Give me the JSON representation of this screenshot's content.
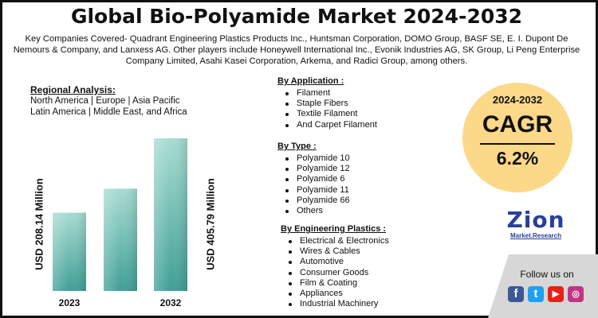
{
  "title": "Global Bio-Polyamide Market 2024-2032",
  "subtitle": "Key Companies Covered- Quadrant Engineering Plastics Products Inc., Huntsman Corporation, DOMO Group, BASF SE, E. I. Dupont De Nemours & Company, and Lanxess AG. Other players include Honeywell International Inc., Evonik Industries AG, SK Group, Li Peng Enterprise Company Limited, Asahi Kasei Corporation, Arkema, and Radici Group, among others.",
  "regional": {
    "heading": "Regional Analysis:",
    "line1": "North America | Europe | Asia Pacific",
    "line2": "Latin America | Middle East, and Africa"
  },
  "chart_data": {
    "type": "bar",
    "categories": [
      "2023",
      "",
      "2032"
    ],
    "values": [
      208.14,
      272,
      405.79
    ],
    "data_labels": [
      "USD 208.14 Million",
      "",
      "USD 405.79 Million"
    ],
    "unit": "USD Million",
    "ylim": [
      0,
      410
    ],
    "grid": false,
    "legend": "none",
    "colors": {
      "bar_top": "#a7dcd2",
      "bar_bottom": "#3f9f95"
    }
  },
  "segments": {
    "application": {
      "heading": "By Application :",
      "items": [
        "Filament",
        "Staple Fibers",
        "Textile Filament",
        "And Carpet Filament"
      ]
    },
    "type": {
      "heading": "By Type :",
      "items": [
        "Polyamide 10",
        "Polyamide 12",
        "Polyamide 6",
        "Polyamide 11",
        "Polyamide 66",
        "Others"
      ]
    },
    "engineering": {
      "heading": "By Engineering Plastics :",
      "items": [
        "Electrical & Electronics",
        "Wires & Cables",
        "Automotive",
        "Consumer Goods",
        "Film & Coating",
        "Appliances",
        "Industrial Machinery"
      ]
    }
  },
  "cagr": {
    "period": "2024-2032",
    "label": "CAGR",
    "value": "6.2%",
    "color": "#fcd889"
  },
  "logo": {
    "main": "Zion",
    "sub": "Market.Research"
  },
  "social": {
    "follow_text": "Follow us on",
    "icons": [
      {
        "name": "facebook-icon",
        "glyph": "f",
        "color": "#3b5998"
      },
      {
        "name": "twitter-icon",
        "glyph": "t",
        "color": "#1da1f2"
      },
      {
        "name": "youtube-icon",
        "glyph": "▶",
        "color": "#e62117"
      },
      {
        "name": "instagram-icon",
        "glyph": "◎",
        "color": "#c13584"
      }
    ]
  }
}
